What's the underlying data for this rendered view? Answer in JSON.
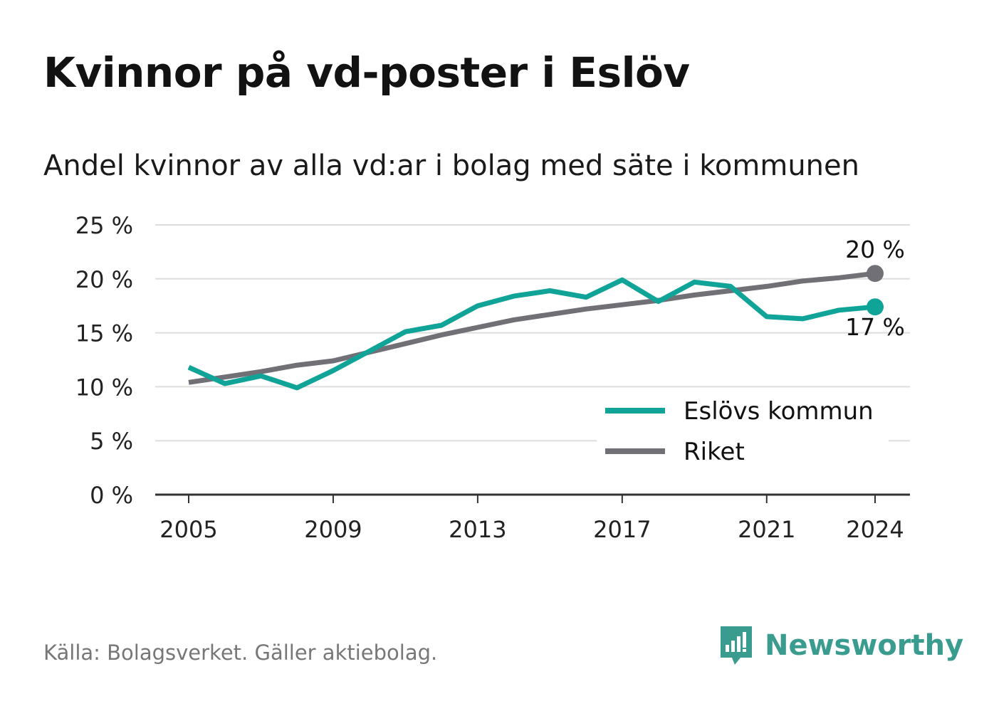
{
  "title": "Kvinnor på vd-poster i Eslöv",
  "subtitle": "Andel kvinnor av alla vd:ar i bolag med säte i kommunen",
  "source": "Källa: Bolagsverket. Gäller aktiebolag.",
  "brand": {
    "name": "Newsworthy",
    "icon": "newsworthy-logo-icon",
    "color": "#3a9b8f"
  },
  "colors": {
    "eslov": "#10a398",
    "riket": "#727077",
    "grid": "#dddddd",
    "axis": "#333333"
  },
  "chart_data": {
    "type": "line",
    "title": "Kvinnor på vd-poster i Eslöv",
    "subtitle": "Andel kvinnor av alla vd:ar i bolag med säte i kommunen",
    "x": [
      2005,
      2006,
      2007,
      2008,
      2009,
      2010,
      2011,
      2012,
      2013,
      2014,
      2015,
      2016,
      2017,
      2018,
      2019,
      2020,
      2021,
      2022,
      2023,
      2024
    ],
    "xticks": [
      2005,
      2009,
      2013,
      2017,
      2021,
      2024
    ],
    "xtick_labels": [
      "2005",
      "2009",
      "2013",
      "2017",
      "2021",
      "2024"
    ],
    "ylim": [
      0,
      25
    ],
    "yticks": [
      0,
      5,
      10,
      15,
      20,
      25
    ],
    "ytick_labels": [
      "0 %",
      "5 %",
      "10 %",
      "15 %",
      "20 %",
      "25 %"
    ],
    "grid": true,
    "legend_position": "bottom-right",
    "series": [
      {
        "name": "Eslövs kommun",
        "color": "#10a398",
        "values": [
          11.8,
          10.3,
          11.0,
          9.9,
          11.5,
          13.3,
          15.1,
          15.7,
          17.5,
          18.4,
          18.9,
          18.3,
          19.9,
          17.9,
          19.7,
          19.3,
          16.5,
          16.3,
          17.1,
          17.4
        ],
        "end_label": "17 %"
      },
      {
        "name": "Riket",
        "color": "#727077",
        "values": [
          10.4,
          10.9,
          11.4,
          12.0,
          12.4,
          13.2,
          14.0,
          14.8,
          15.5,
          16.2,
          16.7,
          17.2,
          17.6,
          18.0,
          18.5,
          18.9,
          19.3,
          19.8,
          20.1,
          20.5
        ],
        "end_label": "20 %"
      }
    ]
  }
}
